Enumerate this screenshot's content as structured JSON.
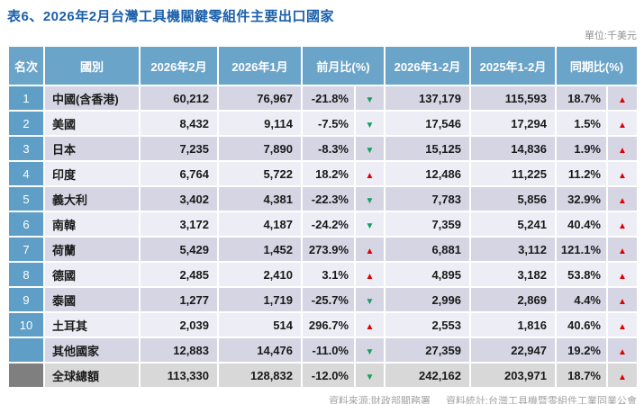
{
  "title": "表6、2026年2月台灣工具機關鍵零組件主要出口國家",
  "unit_label": "單位:千美元",
  "footer": {
    "source": "資料來源:財政部關務署",
    "stats": "資料統計:台灣工具機暨零組件工業同業公會"
  },
  "icons": {
    "up_arrow": "▲",
    "down_arrow": "▼"
  },
  "colors": {
    "title_blue": "#1B5FAA",
    "header_blue": "#6BA4C9",
    "rank_blue": "#5F9FC7",
    "rank_gray": "#7F7F7F",
    "row_odd": "#D5D5E4",
    "row_even": "#EDEDF5",
    "row_total": "#D8D8D8",
    "up_red": "#E00000",
    "down_green": "#16A05D",
    "muted_gray": "#8F8F8F",
    "footer_gray": "#A3A3A3"
  },
  "table": {
    "headers": [
      "名次",
      "國別",
      "2026年2月",
      "2026年1月",
      "前月比(%)",
      "2026年1-2月",
      "2025年1-2月",
      "同期比(%)"
    ],
    "rows": [
      {
        "rank": "1",
        "country": "中國(含香港)",
        "feb_2026": "60,212",
        "jan_2026": "76,967",
        "mom_pct": "-21.8%",
        "mom_dir": "down",
        "ytd_2026": "137,179",
        "ytd_2025": "115,593",
        "yoy_pct": "18.7%",
        "yoy_dir": "up",
        "type": "data"
      },
      {
        "rank": "2",
        "country": "美國",
        "feb_2026": "8,432",
        "jan_2026": "9,114",
        "mom_pct": "-7.5%",
        "mom_dir": "down",
        "ytd_2026": "17,546",
        "ytd_2025": "17,294",
        "yoy_pct": "1.5%",
        "yoy_dir": "up",
        "type": "data"
      },
      {
        "rank": "3",
        "country": "日本",
        "feb_2026": "7,235",
        "jan_2026": "7,890",
        "mom_pct": "-8.3%",
        "mom_dir": "down",
        "ytd_2026": "15,125",
        "ytd_2025": "14,836",
        "yoy_pct": "1.9%",
        "yoy_dir": "up",
        "type": "data"
      },
      {
        "rank": "4",
        "country": "印度",
        "feb_2026": "6,764",
        "jan_2026": "5,722",
        "mom_pct": "18.2%",
        "mom_dir": "up",
        "ytd_2026": "12,486",
        "ytd_2025": "11,225",
        "yoy_pct": "11.2%",
        "yoy_dir": "up",
        "type": "data"
      },
      {
        "rank": "5",
        "country": "義大利",
        "feb_2026": "3,402",
        "jan_2026": "4,381",
        "mom_pct": "-22.3%",
        "mom_dir": "down",
        "ytd_2026": "7,783",
        "ytd_2025": "5,856",
        "yoy_pct": "32.9%",
        "yoy_dir": "up",
        "type": "data"
      },
      {
        "rank": "6",
        "country": "南韓",
        "feb_2026": "3,172",
        "jan_2026": "4,187",
        "mom_pct": "-24.2%",
        "mom_dir": "down",
        "ytd_2026": "7,359",
        "ytd_2025": "5,241",
        "yoy_pct": "40.4%",
        "yoy_dir": "up",
        "type": "data"
      },
      {
        "rank": "7",
        "country": "荷蘭",
        "feb_2026": "5,429",
        "jan_2026": "1,452",
        "mom_pct": "273.9%",
        "mom_dir": "up",
        "ytd_2026": "6,881",
        "ytd_2025": "3,112",
        "yoy_pct": "121.1%",
        "yoy_dir": "up",
        "type": "data"
      },
      {
        "rank": "8",
        "country": "德國",
        "feb_2026": "2,485",
        "jan_2026": "2,410",
        "mom_pct": "3.1%",
        "mom_dir": "up",
        "ytd_2026": "4,895",
        "ytd_2025": "3,182",
        "yoy_pct": "53.8%",
        "yoy_dir": "up",
        "type": "data"
      },
      {
        "rank": "9",
        "country": "泰國",
        "feb_2026": "1,277",
        "jan_2026": "1,719",
        "mom_pct": "-25.7%",
        "mom_dir": "down",
        "ytd_2026": "2,996",
        "ytd_2025": "2,869",
        "yoy_pct": "4.4%",
        "yoy_dir": "up",
        "type": "data"
      },
      {
        "rank": "10",
        "country": "土耳其",
        "feb_2026": "2,039",
        "jan_2026": "514",
        "mom_pct": "296.7%",
        "mom_dir": "up",
        "ytd_2026": "2,553",
        "ytd_2025": "1,816",
        "yoy_pct": "40.6%",
        "yoy_dir": "up",
        "type": "data"
      },
      {
        "rank": "",
        "country": "其他國家",
        "feb_2026": "12,883",
        "jan_2026": "14,476",
        "mom_pct": "-11.0%",
        "mom_dir": "down",
        "ytd_2026": "27,359",
        "ytd_2025": "22,947",
        "yoy_pct": "19.2%",
        "yoy_dir": "up",
        "type": "data"
      },
      {
        "rank": "",
        "country": "全球總額",
        "feb_2026": "113,330",
        "jan_2026": "128,832",
        "mom_pct": "-12.0%",
        "mom_dir": "down",
        "ytd_2026": "242,162",
        "ytd_2025": "203,971",
        "yoy_pct": "18.7%",
        "yoy_dir": "up",
        "type": "total"
      }
    ]
  }
}
